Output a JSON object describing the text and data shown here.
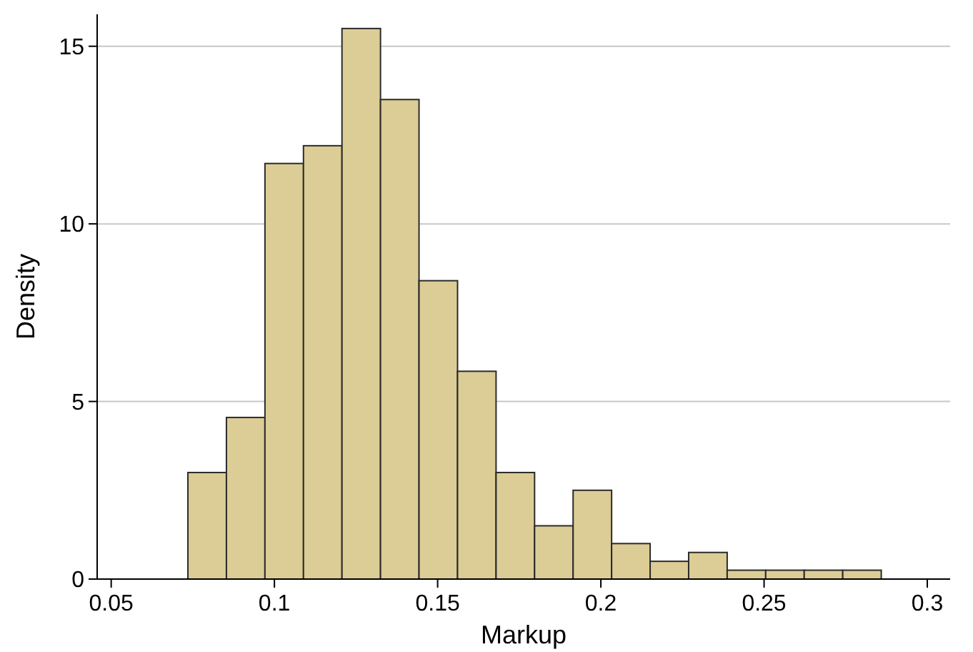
{
  "chart_data": {
    "type": "histogram",
    "xlabel": "Markup",
    "ylabel": "Density",
    "bins": [
      0.0735,
      0.0853,
      0.0971,
      0.1089,
      0.1207,
      0.1325,
      0.1443,
      0.1561,
      0.1679,
      0.1797,
      0.1915,
      0.2033,
      0.2151,
      0.2269,
      0.2387,
      0.2505,
      0.2623,
      0.2741,
      0.2859
    ],
    "values": [
      3.0,
      4.55,
      11.7,
      12.2,
      15.5,
      13.5,
      8.4,
      5.85,
      3.0,
      1.5,
      2.5,
      1.0,
      0.5,
      0.75,
      0.25,
      0.25,
      0.25,
      0.25
    ],
    "color": "#dccd96",
    "xlim": [
      0.0457,
      0.307
    ],
    "ylim": [
      0,
      15.9
    ],
    "xticks": [
      0.05,
      0.1,
      0.15,
      0.2,
      0.25,
      0.3
    ],
    "yticks": [
      0,
      5,
      10,
      15
    ],
    "grid": "y"
  }
}
